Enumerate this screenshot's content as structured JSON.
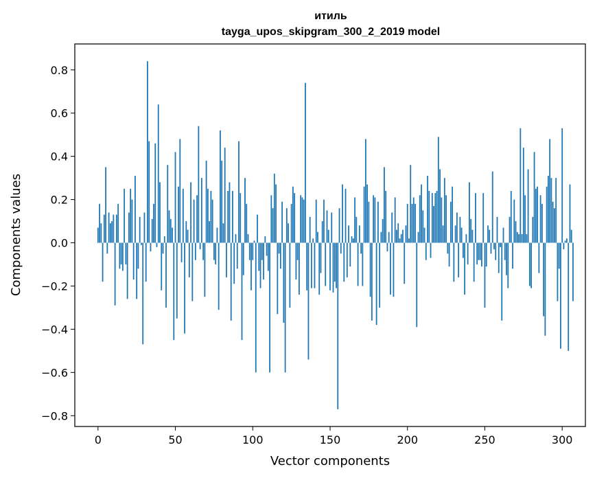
{
  "chart_data": {
    "type": "bar",
    "title": "итиль",
    "subtitle": "tayga_upos_skipgram_300_2_2019 model",
    "xlabel": "Vector components",
    "ylabel": "Components values",
    "xlim": [
      -15,
      315
    ],
    "ylim": [
      -0.85,
      0.92
    ],
    "xticks": [
      0,
      50,
      100,
      150,
      200,
      250,
      300
    ],
    "xtick_labels": [
      "0",
      "50",
      "100",
      "150",
      "200",
      "250",
      "300"
    ],
    "yticks": [
      -0.8,
      -0.6,
      -0.4,
      -0.2,
      0.0,
      0.2,
      0.4,
      0.6,
      0.8
    ],
    "ytick_labels": [
      "−0.8",
      "−0.6",
      "−0.4",
      "−0.2",
      "0.0",
      "0.2",
      "0.4",
      "0.6",
      "0.8"
    ],
    "bar_color": "#1f77b4",
    "grid": false,
    "values": [
      0.07,
      0.18,
      0.09,
      -0.18,
      0.13,
      0.35,
      -0.05,
      0.14,
      0.09,
      0.1,
      0.13,
      -0.29,
      0.13,
      0.18,
      -0.12,
      -0.1,
      -0.13,
      0.25,
      -0.1,
      -0.26,
      0.14,
      0.25,
      0.2,
      -0.17,
      0.31,
      -0.26,
      -0.12,
      0.12,
      -0.01,
      -0.47,
      0.14,
      -0.18,
      0.84,
      0.47,
      -0.04,
      0.11,
      0.18,
      0.46,
      -0.02,
      0.64,
      0.28,
      -0.22,
      -0.05,
      0.03,
      -0.3,
      0.36,
      0.15,
      0.11,
      0.07,
      -0.45,
      0.42,
      -0.35,
      0.26,
      0.48,
      -0.09,
      0.25,
      -0.42,
      0.1,
      0.06,
      -0.16,
      0.28,
      -0.27,
      0.2,
      -0.08,
      0.22,
      0.54,
      -0.03,
      0.3,
      -0.08,
      -0.25,
      0.38,
      0.25,
      0.1,
      0.24,
      0.2,
      -0.08,
      -0.1,
      0.07,
      -0.31,
      0.52,
      0.38,
      0.09,
      0.44,
      -0.16,
      0.24,
      0.28,
      -0.36,
      0.24,
      -0.19,
      0.04,
      -0.12,
      0.47,
      0.23,
      -0.45,
      -0.15,
      0.3,
      0.18,
      0.04,
      -0.08,
      -0.22,
      -0.08,
      0.01,
      -0.6,
      0.13,
      -0.13,
      -0.21,
      -0.08,
      -0.17,
      0.03,
      -0.06,
      -0.13,
      -0.6,
      0.22,
      0.16,
      0.32,
      0.27,
      -0.33,
      -0.05,
      -0.12,
      0.19,
      -0.37,
      -0.6,
      0.16,
      0.09,
      -0.3,
      0.18,
      0.26,
      0.23,
      -0.17,
      -0.08,
      -0.24,
      0.22,
      0.21,
      0.2,
      0.74,
      -0.22,
      -0.54,
      0.12,
      -0.21,
      0.02,
      -0.21,
      0.2,
      0.05,
      -0.24,
      -0.14,
      0.1,
      0.2,
      -0.2,
      0.15,
      0.06,
      -0.22,
      0.14,
      -0.23,
      -0.18,
      -0.21,
      -0.77,
      0.16,
      -0.05,
      0.27,
      -0.18,
      0.25,
      -0.16,
      0.08,
      -0.11,
      0.03,
      0.02,
      0.21,
      0.12,
      -0.2,
      0.08,
      -0.05,
      -0.2,
      0.26,
      0.48,
      0.27,
      0.19,
      -0.25,
      -0.36,
      0.22,
      0.21,
      -0.38,
      0.19,
      -0.3,
      0.05,
      0.11,
      0.35,
      0.24,
      -0.04,
      0.05,
      -0.24,
      0.14,
      -0.25,
      0.21,
      0.06,
      0.09,
      0.02,
      0.04,
      0.06,
      -0.19,
      0.08,
      0.18,
      0.02,
      0.36,
      0.18,
      0.21,
      0.18,
      -0.39,
      0.05,
      0.22,
      0.27,
      0.15,
      0.07,
      -0.08,
      0.31,
      0.24,
      -0.07,
      0.23,
      0.17,
      0.23,
      0.24,
      0.49,
      0.34,
      0.21,
      0.08,
      0.3,
      0.22,
      -0.05,
      -0.11,
      0.19,
      0.26,
      -0.18,
      0.08,
      0.14,
      -0.16,
      0.12,
      0.07,
      -0.07,
      -0.24,
      0.04,
      -0.1,
      0.28,
      0.11,
      0.06,
      -0.18,
      0.23,
      -0.1,
      -0.08,
      -0.08,
      -0.11,
      0.23,
      -0.3,
      -0.11,
      0.08,
      0.06,
      -0.05,
      0.33,
      -0.03,
      -0.08,
      0.12,
      -0.14,
      -0.02,
      -0.36,
      0.07,
      -0.08,
      -0.15,
      -0.21,
      0.12,
      0.24,
      -0.12,
      0.2,
      0.1,
      0.05,
      0.04,
      0.53,
      0.04,
      0.44,
      0.22,
      0.04,
      0.34,
      -0.2,
      -0.21,
      0.12,
      0.42,
      0.25,
      0.26,
      -0.14,
      0.22,
      0.18,
      -0.34,
      -0.43,
      0.26,
      0.31,
      0.48,
      0.3,
      0.19,
      0.16,
      0.3,
      -0.27,
      -0.12,
      -0.49,
      0.53,
      -0.03,
      0.01,
      0.02,
      -0.5,
      0.27,
      0.06,
      -0.27
    ]
  }
}
